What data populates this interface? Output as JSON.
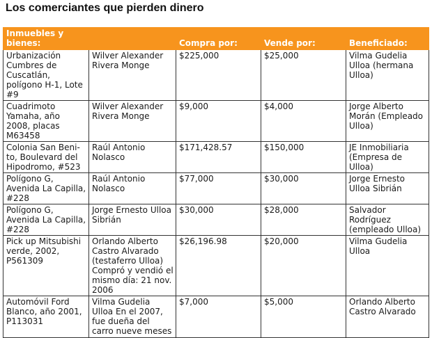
{
  "title": "Los comerciantes que pierden dinero",
  "table": {
    "headers": [
      "Inmuebles y bienes:",
      "",
      "Compra por:",
      "Vende por:",
      "Beneficiado:"
    ],
    "rows": [
      [
        "Urbanización Cumbres de Cuscatlán, polígono H-1, Lote #9",
        "Wilver Alexander Rivera Monge",
        "$225,000",
        "$25,000",
        "Vilma Gudelia Ulloa (hermana Ulloa)"
      ],
      [
        "Cuadrimoto Yamaha, año 2008, placas M63458",
        "Wilver Alexander Rivera Monge",
        "$9,000",
        "$4,000",
        "Jorge Alberto Morán (Empleado Ulloa)"
      ],
      [
        "Colonia San Beni-to, Boulevard del Hipodromo, #523",
        "Raúl Antonio Nolasco",
        "$171,428.57",
        "$150,000",
        "JE Inmobiliaria (Empresa de Ulloa)"
      ],
      [
        "Polígono G, Avenida La Capilla, #228",
        "Raúl Antonio Nolasco",
        "$77,000",
        "$30,000",
        "Jorge Ernesto Ulloa Sibrián"
      ],
      [
        "Polígono G, Avenida La Capilla, #228",
        "Jorge Ernesto Ulloa Sibrián",
        "$30,000",
        "$28,000",
        "Salvador Rodríguez (empleado Ulloa)"
      ],
      [
        "Pick up Mitsubishi verde, 2002, P561309",
        "Orlando Alberto Castro Alvarado (testaferro Ulloa) Compró y vendió el mismo día: 21 nov. 2006",
        "$26,196.98",
        "$20,000",
        "Vilma Gudelia Ulloa"
      ],
      [
        "Automóvil Ford Blanco, año 2001, P113031",
        "Vilma Gudelia Ulloa En el 2007, fue dueña del carro nueve meses",
        "$7,000",
        "$5,000",
        "Orlando Alberto Castro Alvarado"
      ]
    ]
  },
  "colors": {
    "header_bg": "#f7941d",
    "header_text": "#ffffff",
    "border": "#333333"
  }
}
